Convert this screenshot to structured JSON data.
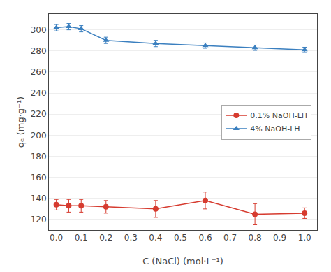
{
  "chart_data": {
    "type": "line",
    "x": [
      0.0,
      0.05,
      0.1,
      0.2,
      0.4,
      0.6,
      0.8,
      1.0
    ],
    "series": [
      {
        "name": "4% NaOH-LH",
        "color": "#3A7FBF",
        "marker": "triangle",
        "values": [
          302,
          303,
          301,
          290,
          287,
          285,
          283,
          281
        ],
        "errors": [
          3,
          3,
          3,
          3,
          3,
          2.5,
          2.5,
          2.5
        ]
      },
      {
        "name": "0.1% NaOH-LH",
        "color": "#D63B2F",
        "marker": "circle",
        "values": [
          134,
          133,
          133,
          132,
          130,
          138,
          125,
          126
        ],
        "errors": [
          5,
          6,
          6,
          6,
          8,
          8,
          10,
          5
        ]
      }
    ],
    "xlabel": "C (NaCl) (mol·L⁻¹)",
    "ylabel": "qₑ (mg·g⁻¹)",
    "xlim": [
      -0.03,
      1.05
    ],
    "ylim": [
      110,
      315
    ],
    "xticks": [
      {
        "value": 0.0,
        "label": "0.0"
      },
      0.1,
      0.2,
      0.3,
      0.4,
      0.5,
      0.6,
      0.7,
      0.8,
      0.9,
      {
        "value": 1.0,
        "label": "1.0"
      }
    ],
    "yticks": [
      120,
      140,
      160,
      180,
      200,
      220,
      240,
      260,
      280,
      300
    ],
    "grid": "y",
    "legend": "right"
  }
}
